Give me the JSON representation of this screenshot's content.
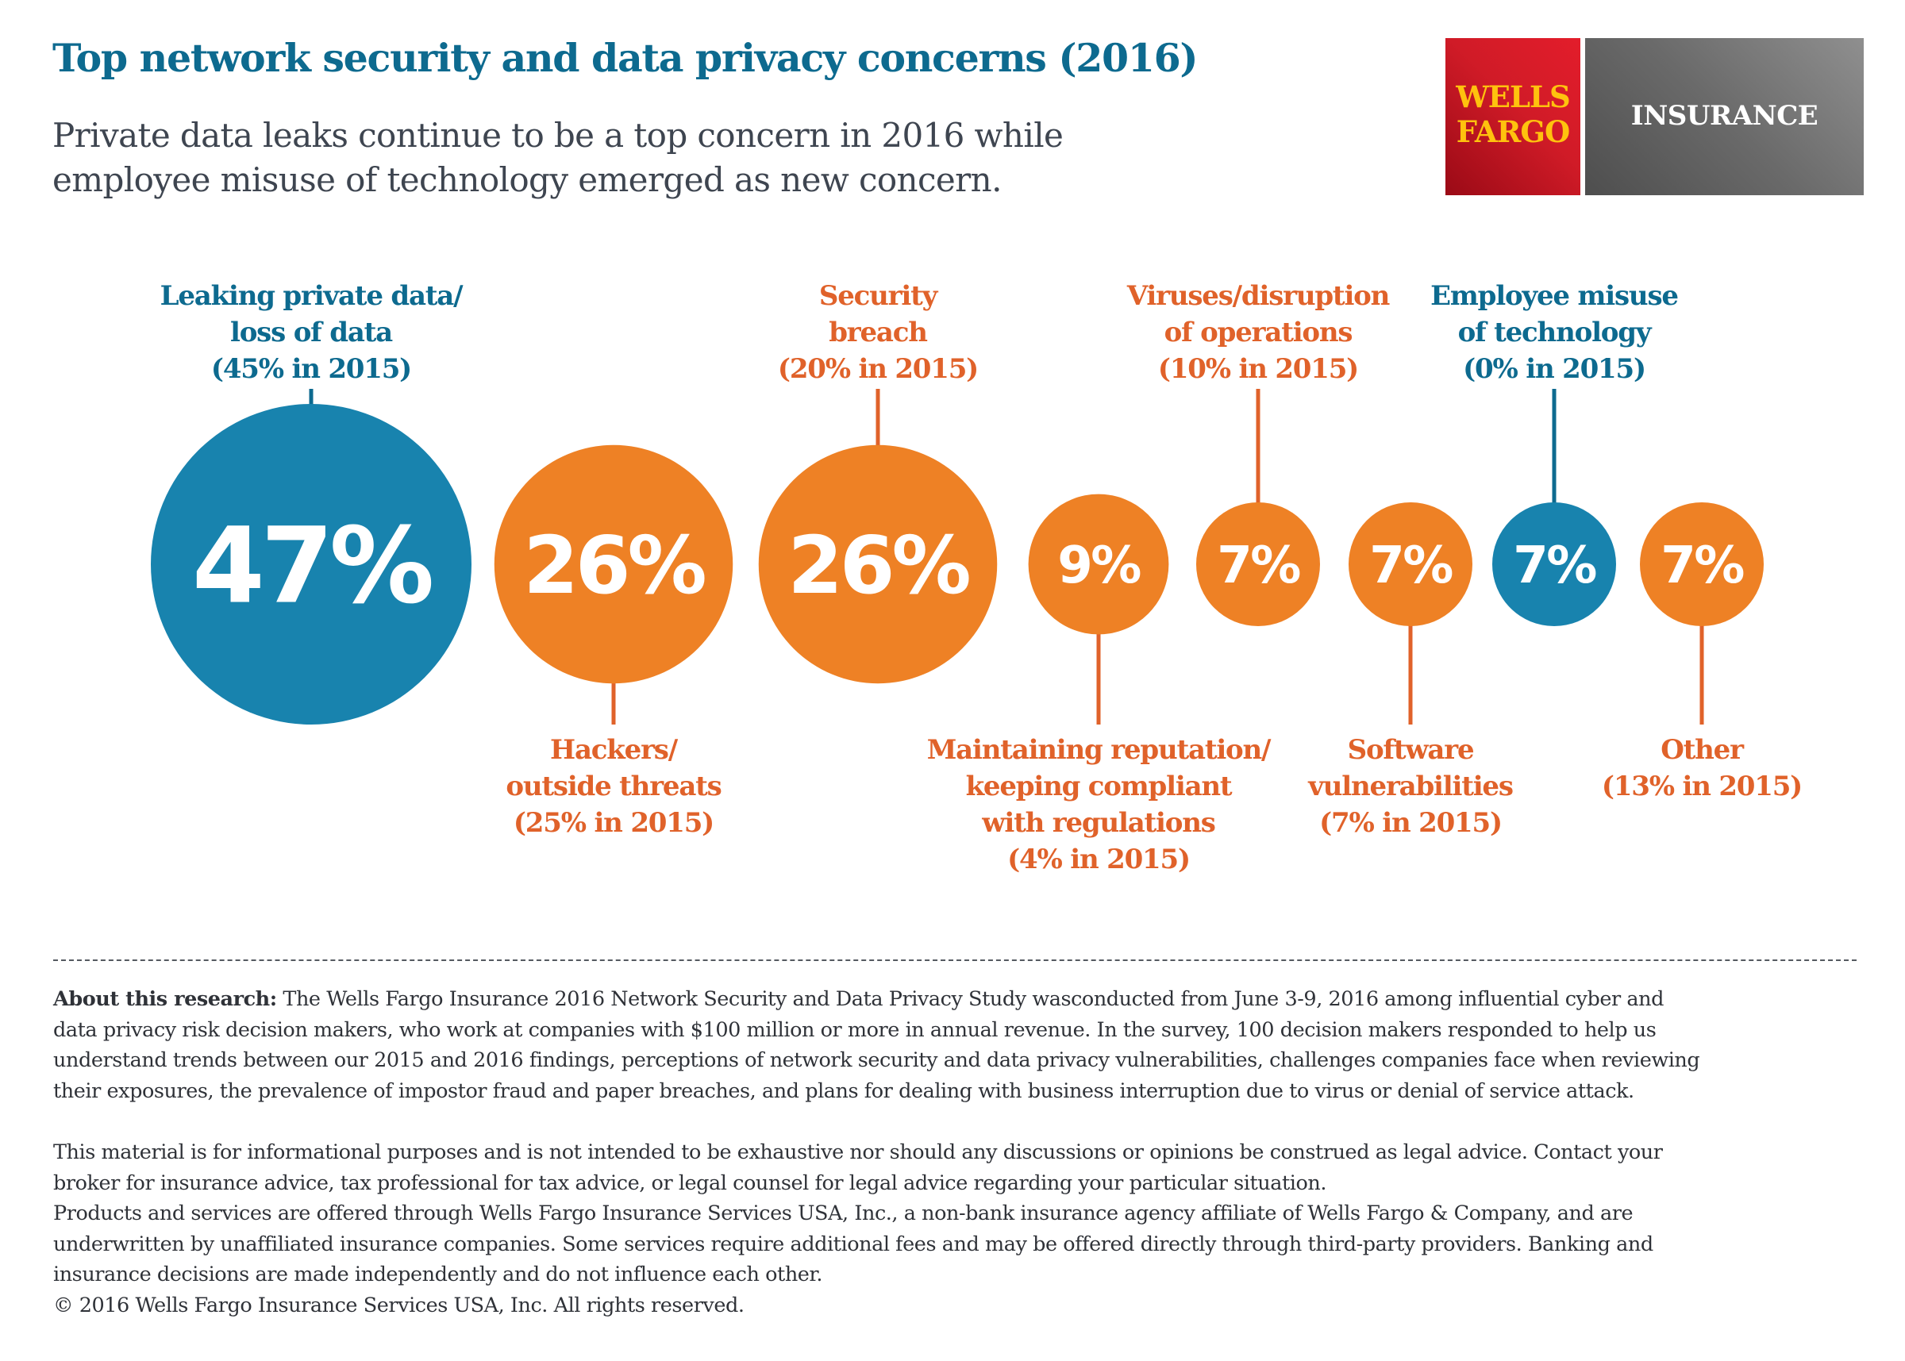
{
  "header": {
    "title": "Top network security and data privacy concerns (2016)",
    "subtitle_lines": [
      "Private data leaks continue to be a top concern in 2016 while",
      "employee misuse of technology emerged as new concern."
    ]
  },
  "logo": {
    "brand_line1": "WELLS",
    "brand_line2": "FARGO",
    "product": "INSURANCE",
    "colors": {
      "red": "#d71e28",
      "gold": "#ffc20e",
      "gray": "#6b6b6b"
    }
  },
  "colors": {
    "blue": "#1883ae",
    "blue_text": "#0d6a8f",
    "orange": "#ee8125",
    "orange_text": "#e0622a"
  },
  "chart_data": {
    "type": "bubble",
    "title": "Top network security and data privacy concerns (2016)",
    "subtitle": "Private data leaks continue to be a top concern in 2016 while employee misuse of technology emerged as new concern.",
    "unit": "%",
    "series": [
      {
        "name": "2016",
        "values": [
          47,
          26,
          26,
          9,
          7,
          7,
          7,
          7
        ]
      },
      {
        "name": "2015",
        "values": [
          45,
          25,
          20,
          4,
          10,
          7,
          0,
          13
        ]
      }
    ],
    "categories": [
      "Leaking private data/loss of data",
      "Hackers/outside threats",
      "Security breach",
      "Maintaining reputation/keeping compliant with regulations",
      "Viruses/disruption of operations",
      "Software vulnerabilities",
      "Employee misuse of technology",
      "Other"
    ],
    "items": [
      {
        "category": "Leaking private data/loss of data",
        "value_2016": 47,
        "value_2015": 45,
        "display": "47%",
        "label_lines": [
          "Leaking private data/",
          "loss of data",
          "(45% in 2015)"
        ],
        "label_position": "top",
        "color": "blue"
      },
      {
        "category": "Hackers/outside threats",
        "value_2016": 26,
        "value_2015": 25,
        "display": "26%",
        "label_lines": [
          "Hackers/",
          "outside threats",
          "(25% in 2015)"
        ],
        "label_position": "bottom",
        "color": "orange"
      },
      {
        "category": "Security breach",
        "value_2016": 26,
        "value_2015": 20,
        "display": "26%",
        "label_lines": [
          "Security",
          "breach",
          "(20% in 2015)"
        ],
        "label_position": "top",
        "color": "orange"
      },
      {
        "category": "Maintaining reputation/keeping compliant with regulations",
        "value_2016": 9,
        "value_2015": 4,
        "display": "9%",
        "label_lines": [
          "Maintaining reputation/",
          "keeping compliant",
          "with regulations",
          "(4% in 2015)"
        ],
        "label_position": "bottom",
        "color": "orange"
      },
      {
        "category": "Viruses/disruption of operations",
        "value_2016": 7,
        "value_2015": 10,
        "display": "7%",
        "label_lines": [
          "Viruses/disruption",
          "of operations",
          "(10% in 2015)"
        ],
        "label_position": "top",
        "color": "orange"
      },
      {
        "category": "Software vulnerabilities",
        "value_2016": 7,
        "value_2015": 7,
        "display": "7%",
        "label_lines": [
          "Software",
          "vulnerabilities",
          "(7% in 2015)"
        ],
        "label_position": "bottom",
        "color": "orange"
      },
      {
        "category": "Employee misuse of technology",
        "value_2016": 7,
        "value_2015": 0,
        "display": "7%",
        "label_lines": [
          "Employee misuse",
          "of technology",
          "(0% in 2015)"
        ],
        "label_position": "top",
        "color": "blue"
      },
      {
        "category": "Other",
        "value_2016": 7,
        "value_2015": 13,
        "display": "7%",
        "label_lines": [
          "Other",
          "(13% in 2015)"
        ],
        "label_position": "bottom",
        "color": "orange"
      }
    ],
    "legend": "none",
    "grid": false
  },
  "footer": {
    "about_lead": "About this research:",
    "about_lines": [
      " The Wells Fargo Insurance 2016 Network Security and Data Privacy Study wasconducted from June 3-9, 2016 among influential cyber and",
      "data privacy risk decision makers, who work at companies with $100 million or more in annual revenue. In the survey, 100 decision makers responded to help us",
      "understand trends between our 2015 and 2016 findings, perceptions of network security and data privacy vulnerabilities, challenges companies face when reviewing",
      "their exposures, the prevalence of impostor fraud and paper breaches, and plans for dealing with business interruption due to virus or denial of service attack."
    ],
    "disclaimer_lines": [
      "This material is for informational purposes and is not intended to be exhaustive nor should any discussions or opinions be construed as legal advice. Contact your",
      "broker for insurance advice, tax professional for tax advice, or legal counsel for legal advice regarding your particular situation.",
      "Products and services are offered through Wells Fargo Insurance Services USA, Inc., a non-bank insurance agency affiliate of Wells Fargo & Company, and are",
      "underwritten by unaffiliated insurance companies. Some services require additional fees and may be offered directly through third-party providers. Banking and",
      "insurance decisions are made independently and do not influence each other.",
      "© 2016 Wells Fargo Insurance Services USA, Inc. All rights reserved."
    ]
  }
}
